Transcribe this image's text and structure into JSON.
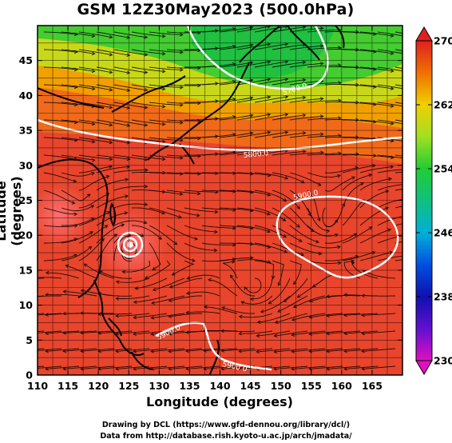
{
  "title": "GSM 12Z30May2023 (500.0hPa)",
  "x_axis": {
    "label": "Longitude (degrees)",
    "range": [
      110,
      170
    ],
    "ticks": [
      "110",
      "115",
      "120",
      "125",
      "130",
      "135",
      "140",
      "145",
      "150",
      "155",
      "160",
      "165"
    ]
  },
  "y_axis": {
    "label": "Latitude  (degrees)",
    "range": [
      0,
      50
    ],
    "ticks": [
      "0",
      "5",
      "10",
      "15",
      "20",
      "25",
      "30",
      "35",
      "40",
      "45"
    ]
  },
  "colorbar": {
    "range": [
      230,
      270
    ],
    "ticks": [
      "230",
      "238",
      "246",
      "254",
      "262",
      "270"
    ]
  },
  "contour_labels": [
    "5700.0",
    "5800.0",
    "5900.0",
    "5900.0",
    "5900.0"
  ],
  "credits": {
    "line1": "Drawing by DCL (https://www.gfd-dennou.org/library/dcl/)",
    "line2": "Data from http://database.rish.kyoto-u.ac.jp/arch/jmadata/"
  },
  "colors": {
    "cold": "#22cc33",
    "mid": "#ee8800",
    "warm": "#e84030",
    "contour": "#ffffff",
    "streamline": "#000000"
  }
}
